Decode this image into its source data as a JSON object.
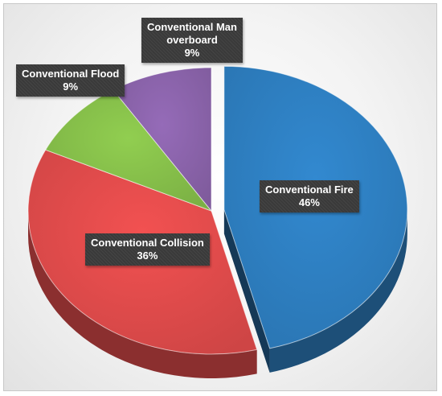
{
  "chart_data": {
    "type": "pie",
    "style": "3d-exploded",
    "slices": [
      {
        "name": "Conventional Fire",
        "value": 46,
        "label_value": "46%",
        "color": "#2e7fc1"
      },
      {
        "name": "Conventional Collision",
        "value": 36,
        "label_value": "36%",
        "color": "#e04b4b"
      },
      {
        "name": "Conventional Flood",
        "value": 9,
        "label_value": "9%",
        "color": "#86bf4a"
      },
      {
        "name": "Conventional Man overboard",
        "value": 9,
        "label_value": "9%",
        "color": "#8a63aa"
      }
    ],
    "label_lines": [
      [
        "Conventional Fire"
      ],
      [
        "Conventional Collision"
      ],
      [
        "Conventional Flood"
      ],
      [
        "Conventional Man",
        "overboard"
      ]
    ],
    "legend": "none"
  }
}
